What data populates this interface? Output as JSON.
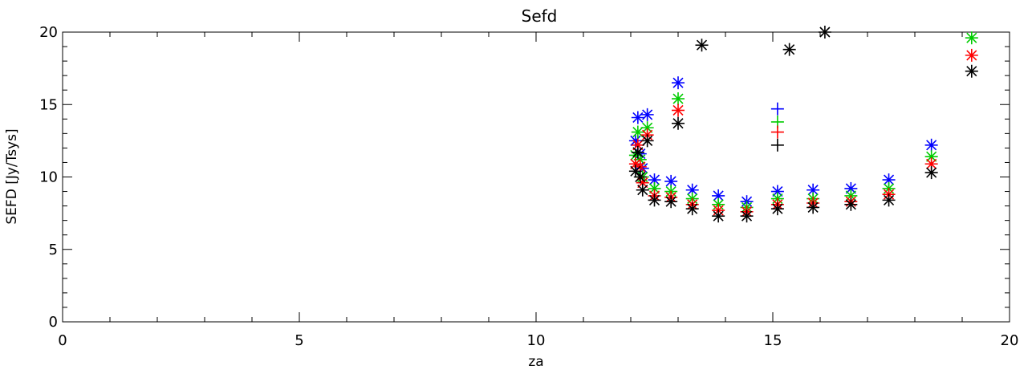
{
  "chart_data": {
    "type": "scatter",
    "title": "Sefd",
    "xlabel": "za",
    "ylabel": "SEFD [Jy/Tsys]",
    "xlim": [
      0,
      20
    ],
    "ylim": [
      0,
      20
    ],
    "x_ticks": [
      0,
      5,
      10,
      15,
      20
    ],
    "x_tick_labels": [
      "0",
      "5",
      "10",
      "15",
      "20"
    ],
    "y_ticks": [
      0,
      5,
      10,
      15,
      20
    ],
    "y_tick_labels": [
      "0",
      "5",
      "10",
      "15",
      "20"
    ],
    "grid": false,
    "series": [
      {
        "color": "#0000ff",
        "marker": "asterisk",
        "x": [
          12.1,
          12.15,
          12.2,
          12.25,
          12.35,
          12.5,
          12.85,
          13.0,
          13.3,
          13.85,
          14.45,
          15.1,
          15.85,
          16.65,
          17.45,
          18.35
        ],
        "y": [
          12.5,
          14.1,
          11.6,
          10.6,
          14.3,
          9.8,
          9.7,
          16.5,
          9.1,
          8.7,
          8.3,
          9.0,
          9.1,
          9.2,
          9.8,
          12.2
        ]
      },
      {
        "color": "#00cc00",
        "marker": "asterisk",
        "x": [
          12.1,
          12.15,
          12.2,
          12.25,
          12.35,
          12.5,
          12.85,
          13.0,
          13.3,
          13.85,
          14.45,
          15.1,
          15.85,
          16.65,
          17.45,
          18.35,
          19.2
        ],
        "y": [
          11.5,
          13.1,
          11.2,
          10.0,
          13.4,
          9.2,
          9.0,
          15.4,
          8.5,
          8.1,
          7.9,
          8.5,
          8.5,
          8.7,
          9.2,
          11.4,
          19.6
        ]
      },
      {
        "color": "#ff0000",
        "marker": "asterisk",
        "x": [
          12.1,
          12.15,
          12.2,
          12.25,
          12.35,
          12.5,
          12.85,
          13.0,
          13.3,
          13.85,
          14.45,
          15.1,
          15.85,
          16.65,
          17.45,
          18.35,
          19.2
        ],
        "y": [
          10.9,
          12.2,
          10.7,
          9.6,
          12.9,
          8.7,
          8.6,
          14.6,
          8.1,
          7.7,
          7.6,
          8.1,
          8.2,
          8.3,
          8.8,
          10.9,
          18.4
        ]
      },
      {
        "color": "#000000",
        "marker": "asterisk",
        "x": [
          12.1,
          12.15,
          12.2,
          12.25,
          12.35,
          12.5,
          12.85,
          13.0,
          13.3,
          13.5,
          13.85,
          14.45,
          15.1,
          15.35,
          15.85,
          16.1,
          16.65,
          17.45,
          18.35,
          19.2
        ],
        "y": [
          10.4,
          11.7,
          10.0,
          9.1,
          12.5,
          8.4,
          8.3,
          13.7,
          7.8,
          19.1,
          7.3,
          7.3,
          7.8,
          18.8,
          7.9,
          20.0,
          8.1,
          8.4,
          10.3,
          17.3
        ]
      }
    ],
    "plus_points": [
      {
        "color": "#0000ff",
        "x": 15.1,
        "y": 14.7
      },
      {
        "color": "#00cc00",
        "x": 15.1,
        "y": 13.8
      },
      {
        "color": "#ff0000",
        "x": 15.1,
        "y": 13.1
      },
      {
        "color": "#000000",
        "x": 15.1,
        "y": 12.2
      }
    ]
  }
}
